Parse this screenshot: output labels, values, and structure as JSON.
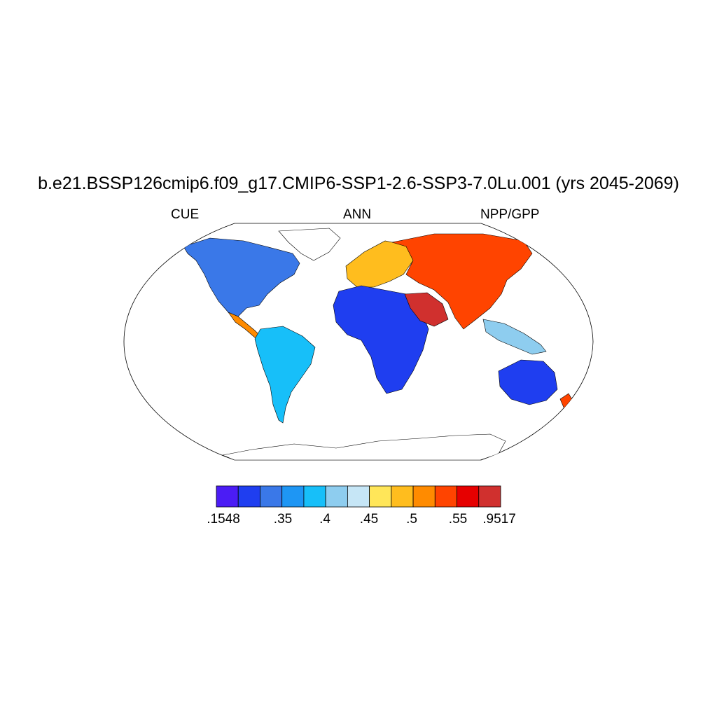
{
  "title": "b.e21.BSSP126cmip6.f09_g17.CMIP6-SSP1-2.6-SSP3-7.0Lu.001 (yrs 2045-2069)",
  "subtitle_left": "CUE",
  "subtitle_center": "ANN",
  "subtitle_right": "NPP/GPP",
  "colorbar": {
    "colors": [
      "#4b1cf5",
      "#1f3ef0",
      "#3a78e8",
      "#1e96f4",
      "#17bff9",
      "#8ecdef",
      "#c6e6f6",
      "#ffe659",
      "#ffbd1e",
      "#ff8b00",
      "#ff4400",
      "#e60000",
      "#d0302e"
    ],
    "tick_labels": [
      ".1548",
      ".35",
      ".4",
      ".45",
      ".5",
      ".55",
      ".9517"
    ]
  },
  "chart_data": {
    "type": "heatmap",
    "projection": "Robinson",
    "variable": "CUE",
    "range": [
      0.1548,
      0.9517
    ],
    "levels": [
      0.1548,
      0.35,
      0.4,
      0.45,
      0.5,
      0.55,
      0.9517
    ]
  }
}
